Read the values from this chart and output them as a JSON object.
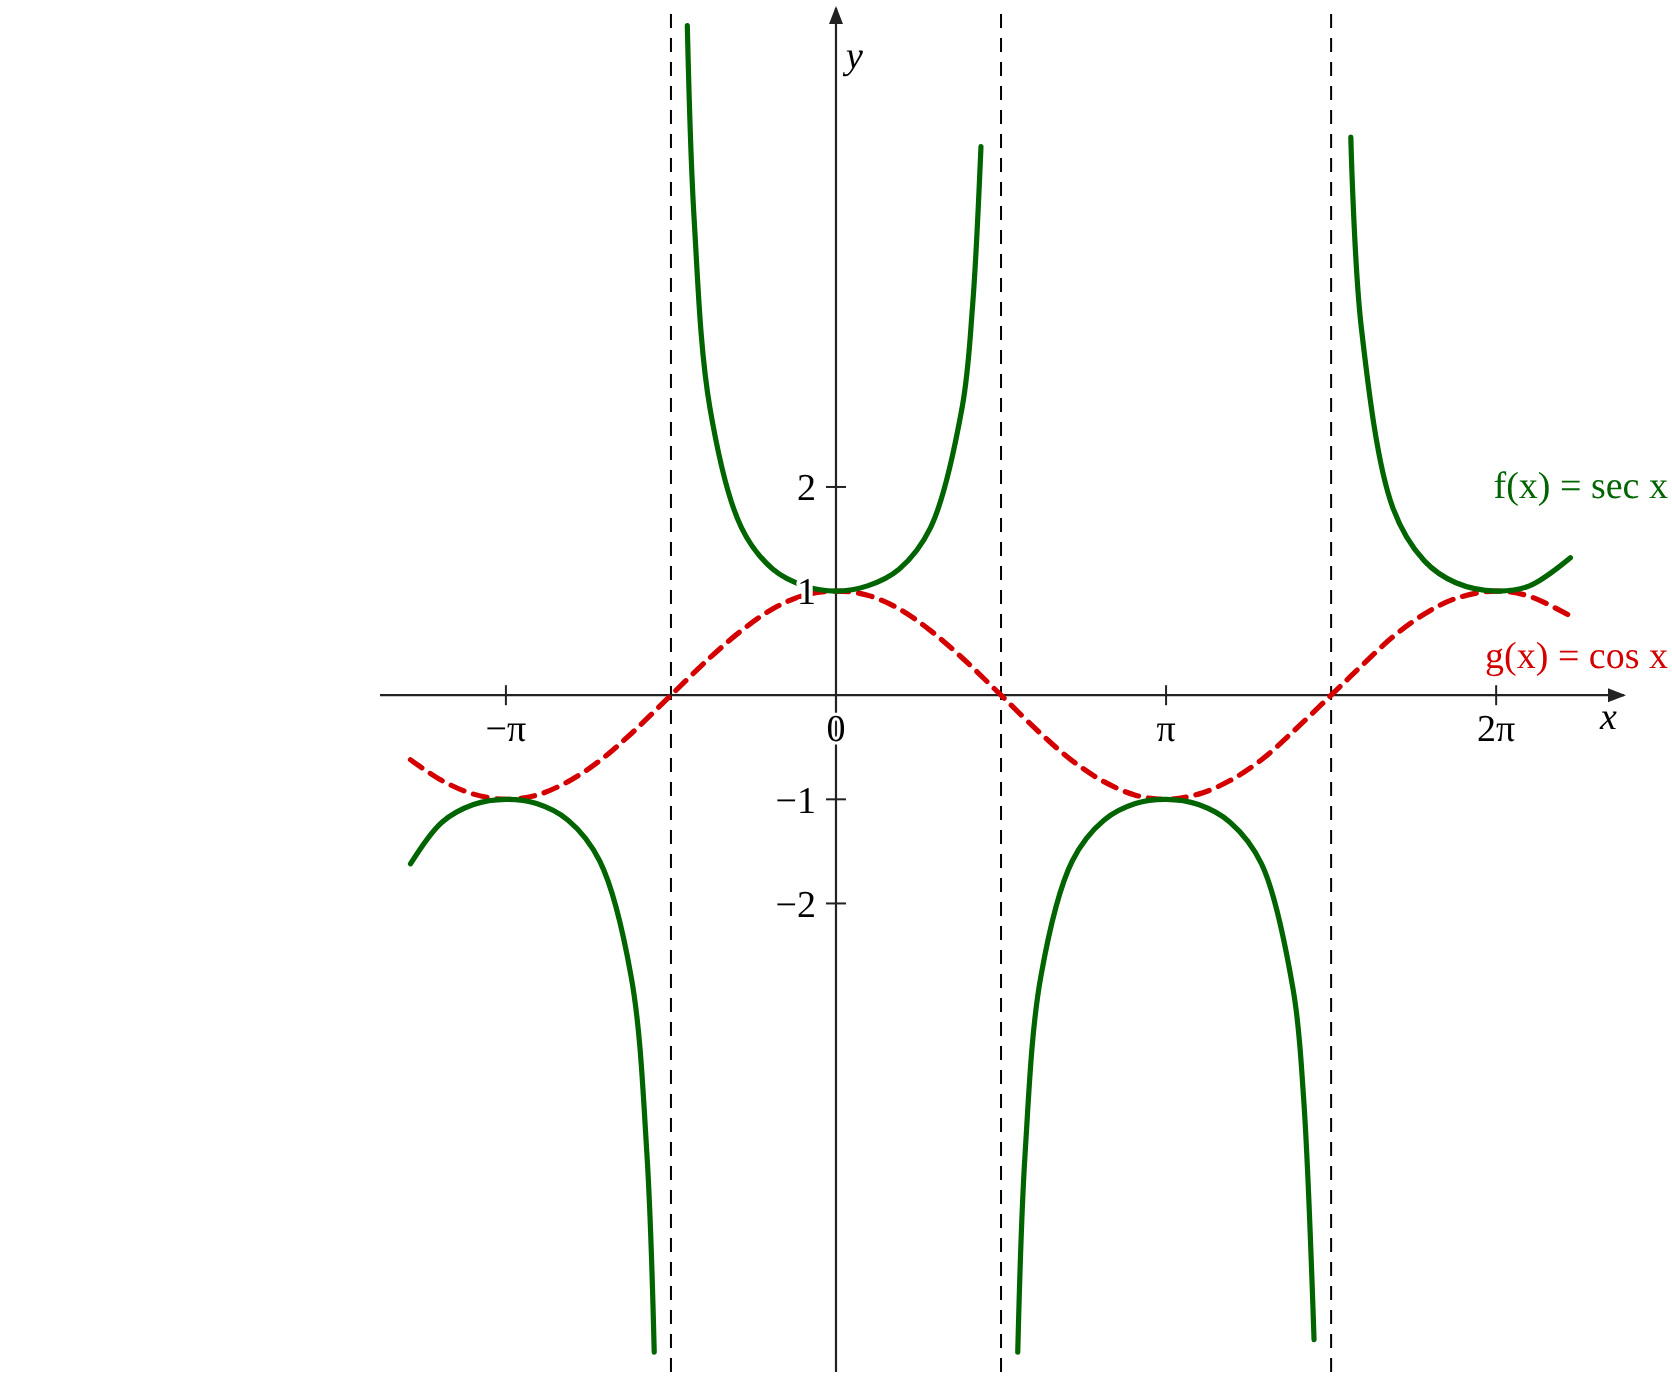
{
  "chart_data": {
    "type": "line",
    "xlabel": "x",
    "ylabel": "y",
    "xlim": [
      -4.34,
      7.5
    ],
    "ylim": [
      -6.5,
      6.6
    ],
    "xticks": [
      {
        "value": -3.1416,
        "label": "−π"
      },
      {
        "value": 0,
        "label": "0"
      },
      {
        "value": 3.1416,
        "label": "π"
      },
      {
        "value": 6.2832,
        "label": "2π"
      }
    ],
    "yticks": [
      -2,
      -1,
      1,
      2
    ],
    "grid": false,
    "legend": false,
    "marker": "none",
    "ref_lines": [
      {
        "axis": "x",
        "value": -1.5708,
        "color": "#000000",
        "line_style": "dashed"
      },
      {
        "axis": "x",
        "value": 1.5708,
        "color": "#000000",
        "line_style": "dashed"
      },
      {
        "axis": "x",
        "value": 4.7124,
        "color": "#000000",
        "line_style": "dashed"
      }
    ],
    "series": [
      {
        "name": "f(x) = sec x",
        "color": "#006400",
        "line_style": "solid",
        "x": [
          -4.05,
          -3.75,
          -3.45,
          -3.1416,
          -2.85,
          -2.55,
          -2.25,
          -1.95,
          -1.8,
          -1.73,
          -1.5708,
          -1.415,
          -1.35,
          -1.2,
          -0.9,
          -0.6,
          -0.3,
          0,
          0.3,
          0.6,
          0.9,
          1.2,
          1.3,
          1.38,
          1.5708,
          1.73,
          1.8,
          1.95,
          2.25,
          2.55,
          2.85,
          3.1416,
          3.45,
          3.75,
          4.05,
          4.35,
          4.45,
          4.55,
          4.7124,
          4.9,
          5.0,
          5.3,
          5.6,
          5.9,
          6.2832,
          6.6,
          6.99
        ],
        "values": [
          -1.62,
          -1.22,
          -1.05,
          -1,
          -1.04,
          -1.2,
          -1.59,
          -2.7,
          -4.4,
          -6.31,
          null,
          6.43,
          4.57,
          2.76,
          1.61,
          1.21,
          1.05,
          1,
          1.05,
          1.21,
          1.61,
          2.76,
          3.74,
          5.27,
          null,
          -6.31,
          -4.4,
          -2.7,
          -1.59,
          -1.2,
          -1.04,
          -1,
          -1.05,
          -1.22,
          -1.62,
          -2.82,
          -3.86,
          -6.19,
          null,
          5.36,
          3.53,
          1.8,
          1.29,
          1.08,
          1,
          1.05,
          1.32
        ]
      },
      {
        "name": "g(x) = cos x",
        "color": "#d40000",
        "line_style": "dashed",
        "x": [
          -4.05,
          -3.75,
          -3.45,
          -3.1416,
          -2.85,
          -2.55,
          -2.25,
          -1.95,
          -1.5708,
          -1.2,
          -0.9,
          -0.6,
          -0.3,
          0,
          0.3,
          0.6,
          0.9,
          1.2,
          1.5708,
          1.95,
          2.25,
          2.55,
          2.85,
          3.1416,
          3.45,
          3.75,
          4.05,
          4.35,
          4.7124,
          5.0,
          5.3,
          5.6,
          5.9,
          6.2832,
          6.6,
          6.99
        ],
        "values": [
          -0.62,
          -0.82,
          -0.95,
          -1,
          -0.96,
          -0.83,
          -0.63,
          -0.37,
          0,
          0.36,
          0.62,
          0.83,
          0.96,
          1,
          0.96,
          0.83,
          0.62,
          0.36,
          0,
          -0.37,
          -0.63,
          -0.83,
          -0.96,
          -1,
          -0.95,
          -0.82,
          -0.62,
          -0.35,
          0,
          0.28,
          0.56,
          0.78,
          0.93,
          1,
          0.95,
          0.76
        ]
      }
    ]
  }
}
